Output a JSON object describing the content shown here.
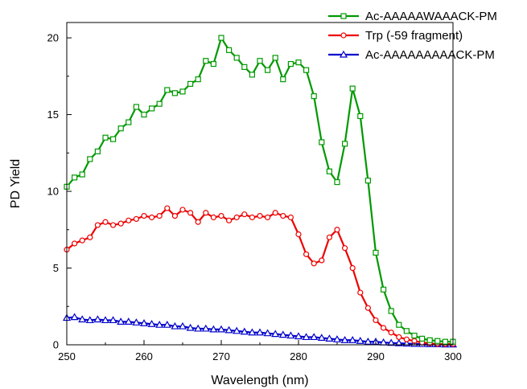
{
  "chart_data": {
    "type": "line",
    "title": "",
    "xlabel": "Wavelength (nm)",
    "ylabel": "PD Yield",
    "xlim": [
      250,
      300
    ],
    "ylim": [
      0,
      21
    ],
    "xticks": [
      250,
      260,
      270,
      280,
      290,
      300
    ],
    "yticks": [
      0,
      5,
      10,
      15,
      20
    ],
    "grid": false,
    "legend_position": "top-right",
    "series": [
      {
        "name": "Ac-AAAAAWAAACK-PM",
        "color": "#009900",
        "marker": "square",
        "x": [
          250,
          251,
          252,
          253,
          254,
          255,
          256,
          257,
          258,
          259,
          260,
          261,
          262,
          263,
          264,
          265,
          266,
          267,
          268,
          269,
          270,
          271,
          272,
          273,
          274,
          275,
          276,
          277,
          278,
          279,
          280,
          281,
          282,
          283,
          284,
          285,
          286,
          287,
          288,
          289,
          290,
          291,
          292,
          293,
          294,
          295,
          296,
          297,
          298,
          299,
          300
        ],
        "y": [
          10.3,
          10.9,
          11.1,
          12.1,
          12.6,
          13.5,
          13.4,
          14.1,
          14.5,
          15.5,
          15.0,
          15.4,
          15.7,
          16.6,
          16.4,
          16.5,
          17.0,
          17.3,
          18.5,
          18.3,
          20.0,
          19.2,
          18.7,
          18.1,
          17.6,
          18.5,
          17.9,
          18.7,
          17.3,
          18.3,
          18.4,
          17.9,
          16.2,
          13.2,
          11.3,
          10.6,
          13.1,
          16.7,
          14.9,
          10.7,
          6.0,
          3.6,
          2.2,
          1.3,
          0.9,
          0.6,
          0.4,
          0.3,
          0.25,
          0.2,
          0.2
        ]
      },
      {
        "name": "Trp (-59 fragment)",
        "color": "#ee0000",
        "marker": "circle",
        "x": [
          250,
          251,
          252,
          253,
          254,
          255,
          256,
          257,
          258,
          259,
          260,
          261,
          262,
          263,
          264,
          265,
          266,
          267,
          268,
          269,
          270,
          271,
          272,
          273,
          274,
          275,
          276,
          277,
          278,
          279,
          280,
          281,
          282,
          283,
          284,
          285,
          286,
          287,
          288,
          289,
          290,
          291,
          292,
          293,
          294,
          295,
          296,
          297,
          298,
          299,
          300
        ],
        "y": [
          6.2,
          6.6,
          6.8,
          7.0,
          7.8,
          8.0,
          7.8,
          7.9,
          8.1,
          8.2,
          8.4,
          8.3,
          8.4,
          8.9,
          8.4,
          8.8,
          8.6,
          8.0,
          8.6,
          8.3,
          8.4,
          8.1,
          8.3,
          8.5,
          8.3,
          8.4,
          8.3,
          8.6,
          8.4,
          8.3,
          7.2,
          5.9,
          5.3,
          5.5,
          7.0,
          7.5,
          6.3,
          5.0,
          3.4,
          2.4,
          1.6,
          1.1,
          0.8,
          0.5,
          0.35,
          0.25,
          0.15,
          0.1,
          0.05,
          0.05,
          0.05
        ]
      },
      {
        "name": "Ac-AAAAAAAAACK-PM",
        "color": "#0000cc",
        "marker": "triangle",
        "x": [
          250,
          251,
          252,
          253,
          254,
          255,
          256,
          257,
          258,
          259,
          260,
          261,
          262,
          263,
          264,
          265,
          266,
          267,
          268,
          269,
          270,
          271,
          272,
          273,
          274,
          275,
          276,
          277,
          278,
          279,
          280,
          281,
          282,
          283,
          284,
          285,
          286,
          287,
          288,
          289,
          290,
          291,
          292,
          293,
          294,
          295,
          296,
          297,
          298,
          299,
          300
        ],
        "y": [
          1.75,
          1.8,
          1.65,
          1.6,
          1.65,
          1.6,
          1.6,
          1.5,
          1.5,
          1.45,
          1.4,
          1.35,
          1.3,
          1.3,
          1.2,
          1.2,
          1.1,
          1.05,
          1.05,
          1.0,
          1.0,
          0.95,
          0.9,
          0.85,
          0.8,
          0.8,
          0.75,
          0.7,
          0.65,
          0.6,
          0.55,
          0.5,
          0.5,
          0.45,
          0.4,
          0.35,
          0.3,
          0.3,
          0.25,
          0.2,
          0.2,
          0.15,
          0.12,
          0.1,
          0.08,
          0.06,
          0.05,
          0.04,
          0.03,
          0.02,
          0.02
        ]
      }
    ]
  }
}
